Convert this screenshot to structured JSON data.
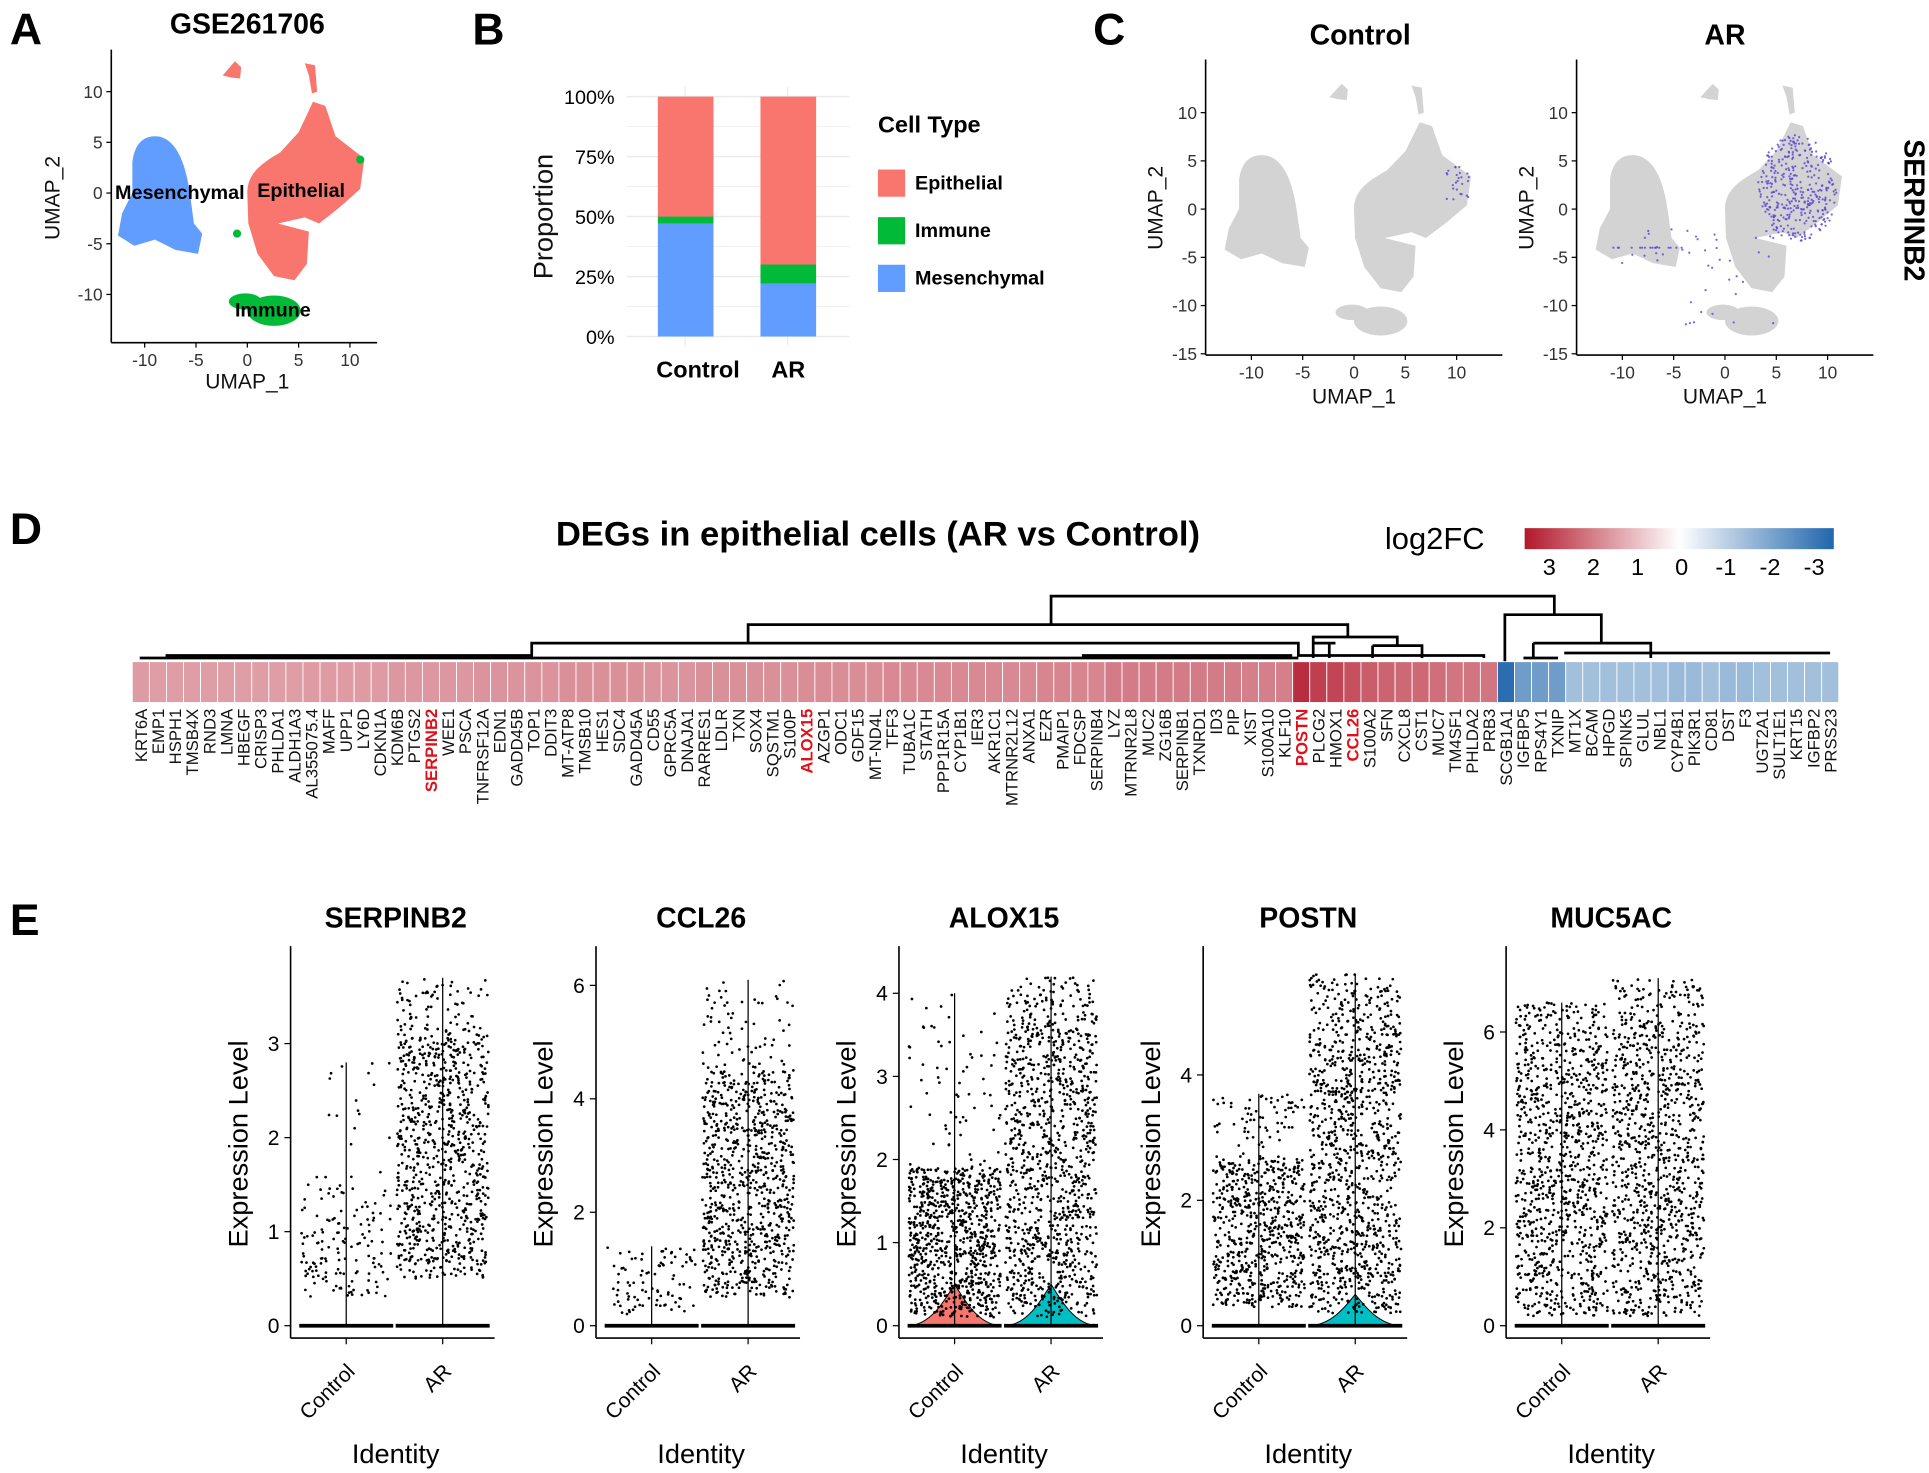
{
  "panel_letters": [
    "A",
    "B",
    "C",
    "D",
    "E"
  ],
  "colors": {
    "epithelial": "#F8766D",
    "immune": "#00BA38",
    "mesenchymal": "#619CFF",
    "feature_low": "#D3D3D3",
    "feature_high": "#5A3FD8",
    "heat_high": "#B2182B",
    "heat_mid": "#FFFFFF",
    "heat_low": "#2166AC",
    "highlight": "#E0101A"
  },
  "chart_data": [
    {
      "type": "scatter",
      "title": "GSE261706",
      "xlabel": "UMAP_1",
      "ylabel": "UMAP_2",
      "xticks": [
        -10,
        -5,
        0,
        5,
        10
      ],
      "yticks": [
        -10,
        -5,
        0,
        5,
        10
      ],
      "clusters": [
        "Mesenchymal",
        "Epithelial",
        "Immune"
      ]
    },
    {
      "type": "bar",
      "stacked": true,
      "ylabel": "Proportion",
      "xlabel": "",
      "categories": [
        "Control",
        "AR"
      ],
      "yticks": [
        "0%",
        "25%",
        "50%",
        "75%",
        "100%"
      ],
      "ylim": [
        0,
        100
      ],
      "legend_title": "Cell Type",
      "legend_position": "right",
      "series": [
        {
          "name": "Epithelial",
          "color": "#F8766D",
          "values": [
            50,
            70
          ]
        },
        {
          "name": "Immune",
          "color": "#00BA38",
          "values": [
            3,
            8
          ]
        },
        {
          "name": "Mesenchymal",
          "color": "#619CFF",
          "values": [
            47,
            22
          ]
        }
      ]
    },
    {
      "type": "scatter",
      "feature": "SERPINB2",
      "panels": [
        "Control",
        "AR"
      ],
      "xlabel": "UMAP_1",
      "ylabel": "UMAP_2",
      "xticks": [
        -10,
        -5,
        0,
        5,
        10
      ],
      "yticks": [
        -15,
        -10,
        -5,
        0,
        5,
        10
      ]
    },
    {
      "type": "heatmap",
      "title": "DEGs in epithelial cells (AR vs Control)",
      "legend_title": "log2FC",
      "legend_ticks": [
        3,
        2,
        1,
        0,
        -1,
        -2,
        -3
      ],
      "highlighted": [
        "SERPINB2",
        "ALOX15",
        "POSTN",
        "CCL26"
      ],
      "genes": [
        "KRT6A",
        "EMP1",
        "HSPH1",
        "TMSB4X",
        "RND3",
        "LMNA",
        "HBEGF",
        "CRISP3",
        "PHLDA1",
        "ALDH1A3",
        "AL355075.4",
        "MAFF",
        "UPP1",
        "LY6D",
        "CDKN1A",
        "KDM6B",
        "PTGS2",
        "SERPINB2",
        "WEE1",
        "PSCA",
        "TNFRSF12A",
        "EDN1",
        "GADD45B",
        "TOP1",
        "DDIT3",
        "MT-ATP8",
        "TMSB10",
        "HES1",
        "SDC4",
        "GADD45A",
        "CD55",
        "GPRC5A",
        "DNAJA1",
        "RARRES1",
        "LDLR",
        "TXN",
        "SOX4",
        "SQSTM1",
        "S100P",
        "ALOX15",
        "AZGP1",
        "ODC1",
        "GDF15",
        "MT-ND4L",
        "TFF3",
        "TUBA1C",
        "STATH",
        "PPP1R15A",
        "CYP1B1",
        "IER3",
        "AKR1C1",
        "MTRNR2L12",
        "ANXA1",
        "EZR",
        "PMAIP1",
        "FDCSP",
        "SERPINB4",
        "LYZ",
        "MTRNR2L8",
        "MUC2",
        "ZG16B",
        "SERPINB1",
        "TXNRD1",
        "ID3",
        "PIP",
        "XIST",
        "S100A10",
        "KLF10",
        "POSTN",
        "PLCG2",
        "HMOX1",
        "CCL26",
        "S100A2",
        "SFN",
        "CXCL8",
        "CST1",
        "MUC7",
        "TM4SF1",
        "PHLDA2",
        "PRB3",
        "SCGB1A1",
        "IGFBP5",
        "RPS4Y1",
        "TXNIP",
        "MT1X",
        "BCAM",
        "HPGD",
        "SPINK5",
        "GLUL",
        "NBL1",
        "CYP4B1",
        "PIK3R1",
        "CD81",
        "DST",
        "F3",
        "UGT2A1",
        "SULT1E1",
        "KRT15",
        "IGFBP2",
        "PRSS23"
      ],
      "values": [
        1.05,
        1.0,
        1.0,
        1.0,
        1.0,
        1.0,
        1.0,
        1.0,
        1.0,
        1.0,
        1.05,
        1.05,
        1.05,
        1.05,
        1.05,
        1.1,
        1.1,
        1.1,
        1.1,
        1.1,
        1.15,
        1.15,
        1.15,
        1.15,
        1.15,
        1.2,
        1.2,
        1.2,
        1.2,
        1.2,
        1.15,
        1.15,
        1.15,
        1.2,
        1.2,
        1.2,
        1.2,
        1.2,
        1.2,
        1.25,
        1.25,
        1.25,
        1.25,
        1.25,
        1.3,
        1.3,
        1.3,
        1.3,
        1.3,
        1.3,
        1.3,
        1.3,
        1.3,
        1.35,
        1.35,
        1.35,
        1.35,
        1.5,
        1.5,
        1.5,
        1.5,
        1.5,
        1.5,
        1.5,
        1.5,
        1.45,
        1.45,
        1.45,
        2.8,
        2.5,
        2.4,
        2.2,
        2.0,
        1.9,
        1.8,
        1.8,
        1.7,
        1.6,
        1.6,
        1.6,
        -3.0,
        -1.8,
        -1.8,
        -1.8,
        -1.0,
        -1.0,
        -1.0,
        -1.0,
        -1.0,
        -1.0,
        -1.1,
        -1.1,
        -1.0,
        -1.1,
        -1.1,
        -1.0,
        -1.0,
        -1.0,
        -1.0,
        -1.0
      ]
    },
    {
      "type": "violin",
      "xlabel": "Identity",
      "ylabel": "Expression Level",
      "plots": [
        {
          "gene": "SERPINB2",
          "ylim": [
            0,
            3.8
          ],
          "yticks": [
            0,
            1,
            2,
            3
          ],
          "groups": [
            {
              "name": "Control",
              "max": 2.8,
              "bulk": [
                0.3,
                1.5
              ],
              "points": 160,
              "violin": false
            },
            {
              "name": "AR",
              "max": 3.7,
              "bulk": [
                0.5,
                3.1
              ],
              "points": 900,
              "violin": false
            }
          ]
        },
        {
          "gene": "CCL26",
          "ylim": [
            0,
            6.3
          ],
          "yticks": [
            0,
            2,
            4,
            6
          ],
          "groups": [
            {
              "name": "Control",
              "max": 1.4,
              "bulk": [
                0.2,
                1.3
              ],
              "points": 90,
              "violin": false
            },
            {
              "name": "AR",
              "max": 6.1,
              "bulk": [
                0.5,
                4.5
              ],
              "points": 900,
              "violin": false
            }
          ]
        },
        {
          "gene": "ALOX15",
          "ylim": [
            0,
            4.3
          ],
          "yticks": [
            0,
            1,
            2,
            3,
            4
          ],
          "groups": [
            {
              "name": "Control",
              "max": 4.0,
              "bulk": [
                0.1,
                1.9
              ],
              "points": 900,
              "violin": true
            },
            {
              "name": "AR",
              "max": 4.2,
              "bulk": [
                0.1,
                3.6
              ],
              "points": 1100,
              "violin": true
            }
          ]
        },
        {
          "gene": "POSTN",
          "ylim": [
            0,
            5.7
          ],
          "yticks": [
            0,
            2,
            4
          ],
          "groups": [
            {
              "name": "Control",
              "max": 3.7,
              "bulk": [
                0.3,
                2.7
              ],
              "points": 700,
              "violin": false
            },
            {
              "name": "AR",
              "max": 5.6,
              "bulk": [
                0.2,
                5.0
              ],
              "points": 1100,
              "violin": true
            }
          ]
        },
        {
          "gene": "MUC5AC",
          "ylim": [
            0,
            7.3
          ],
          "yticks": [
            0,
            2,
            4,
            6
          ],
          "groups": [
            {
              "name": "Control",
              "max": 6.6,
              "bulk": [
                0.2,
                6.0
              ],
              "points": 1000,
              "violin": false
            },
            {
              "name": "AR",
              "max": 7.1,
              "bulk": [
                0.2,
                6.2
              ],
              "points": 1000,
              "violin": false
            }
          ]
        }
      ]
    }
  ]
}
